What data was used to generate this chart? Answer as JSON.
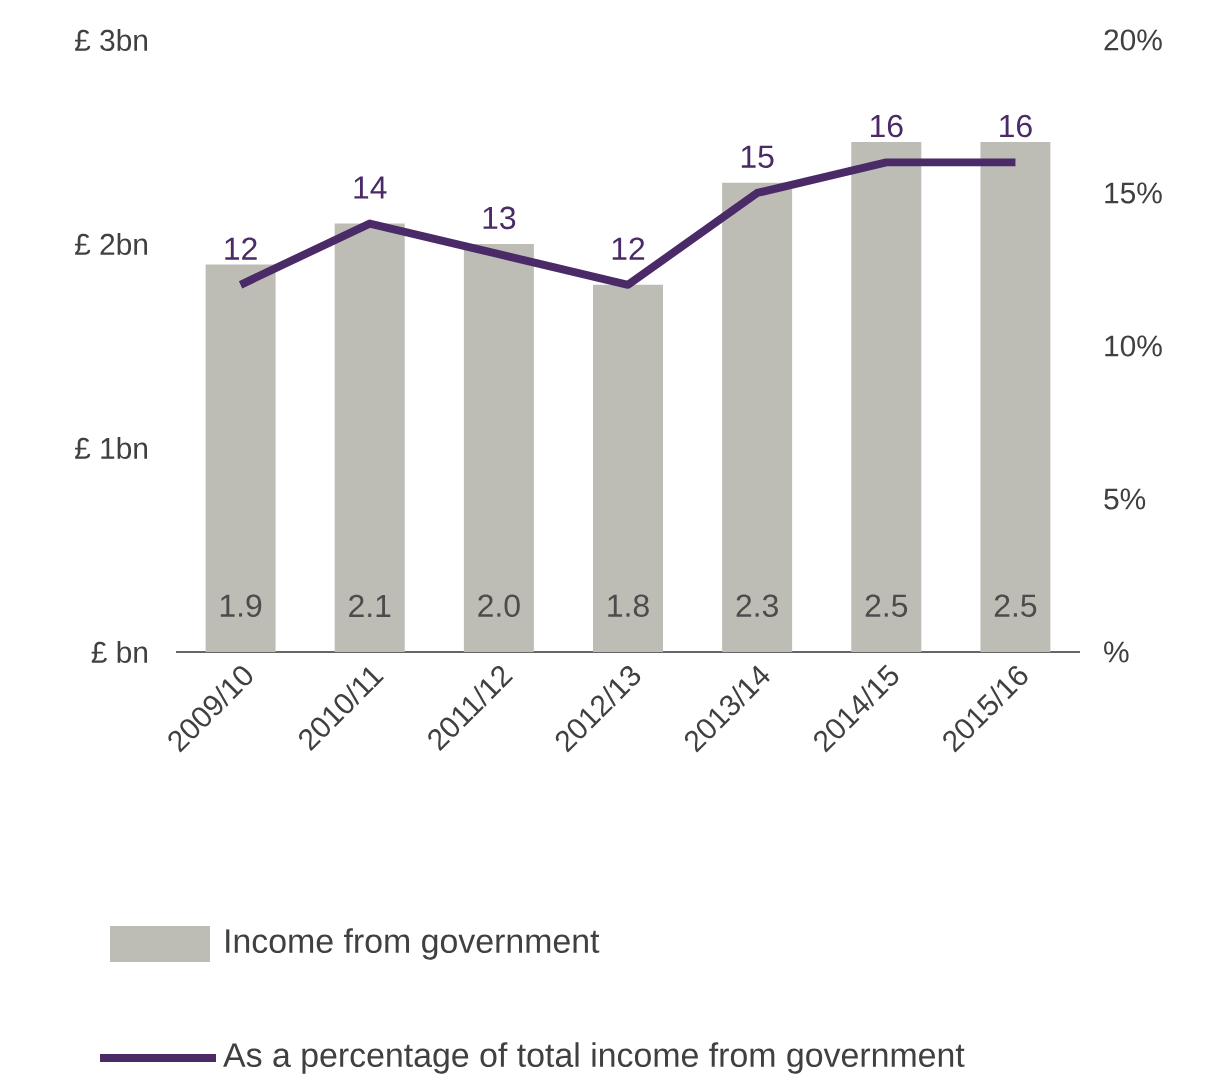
{
  "chart_data": {
    "type": "bar",
    "categories": [
      "2009/10",
      "2010/11",
      "2011/12",
      "2012/13",
      "2013/14",
      "2014/15",
      "2015/16"
    ],
    "series": [
      {
        "name": "Income from government",
        "color": "#bdbdb5",
        "values": [
          1.9,
          2.1,
          2.0,
          1.8,
          2.3,
          2.5,
          2.5
        ],
        "value_labels": [
          "1.9",
          "2.1",
          "2.0",
          "1.8",
          "2.3",
          "2.5",
          "2.5"
        ]
      },
      {
        "name": "As a percentage of total income from government",
        "type": "line",
        "axis": "y2",
        "color": "#4a2a67",
        "values": [
          12,
          14,
          13,
          12,
          15,
          16,
          16
        ],
        "value_labels": [
          "12",
          "14",
          "13",
          "12",
          "15",
          "16",
          "16"
        ]
      }
    ],
    "ylim": [
      0,
      3
    ],
    "yticks": [
      {
        "value": 0,
        "label": "£ bn"
      },
      {
        "value": 1,
        "label": "£ 1bn"
      },
      {
        "value": 2,
        "label": "£ 2bn"
      },
      {
        "value": 3,
        "label": "£ 3bn"
      }
    ],
    "y2lim": [
      0,
      20
    ],
    "y2ticks": [
      {
        "value": 0,
        "label": "%"
      },
      {
        "value": 5,
        "label": "5%"
      },
      {
        "value": 10,
        "label": "10%"
      },
      {
        "value": 15,
        "label": "15%"
      },
      {
        "value": 20,
        "label": "20%"
      }
    ],
    "legend": "bottom"
  }
}
